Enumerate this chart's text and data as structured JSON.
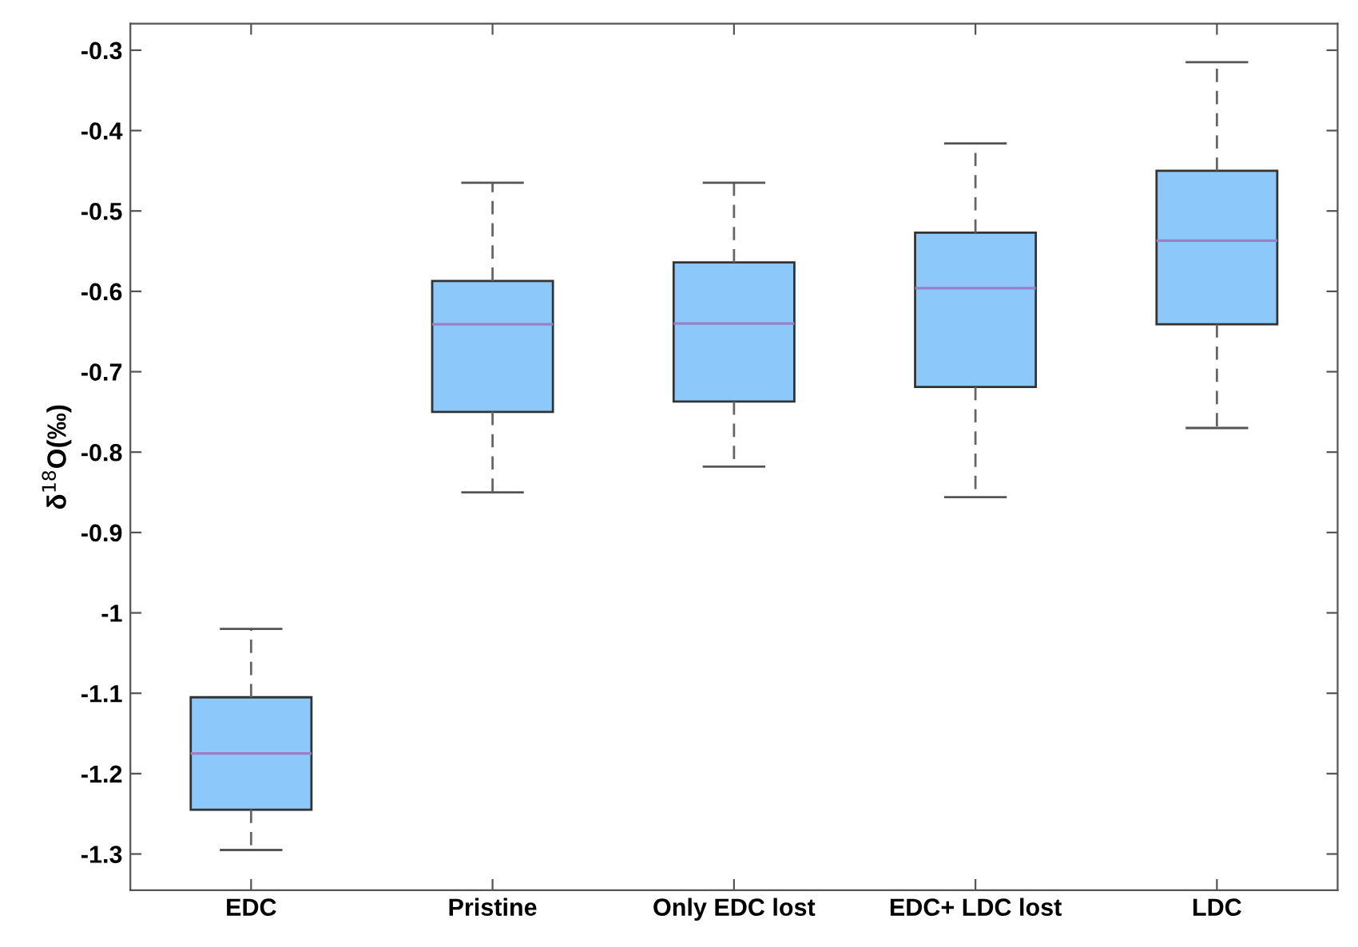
{
  "chart_data": {
    "type": "box",
    "ylabel": "δ$^{18}$O(‰)",
    "categories": [
      "EDC",
      "Pristine",
      "Only EDC lost",
      "EDC+ LDC lost",
      "LDC"
    ],
    "boxes": [
      {
        "low": -1.295,
        "q1": -1.245,
        "median": -1.175,
        "q3": -1.105,
        "high": -1.02
      },
      {
        "low": -0.85,
        "q1": -0.75,
        "median": -0.641,
        "q3": -0.587,
        "high": -0.465
      },
      {
        "low": -0.818,
        "q1": -0.737,
        "median": -0.64,
        "q3": -0.564,
        "high": -0.465
      },
      {
        "low": -0.856,
        "q1": -0.719,
        "median": -0.596,
        "q3": -0.527,
        "high": -0.416
      },
      {
        "low": -0.77,
        "q1": -0.641,
        "median": -0.537,
        "q3": -0.45,
        "high": -0.315
      }
    ],
    "color": "#8cc8fa",
    "ylim": [
      -1.345,
      -0.267
    ],
    "yticks": [
      -1.3,
      -1.2,
      -1.1,
      {
        "value": -1.0,
        "label": "-1"
      },
      -0.9,
      -0.8,
      -0.7,
      -0.6,
      -0.5,
      -0.4,
      -0.3
    ],
    "grid": false
  }
}
